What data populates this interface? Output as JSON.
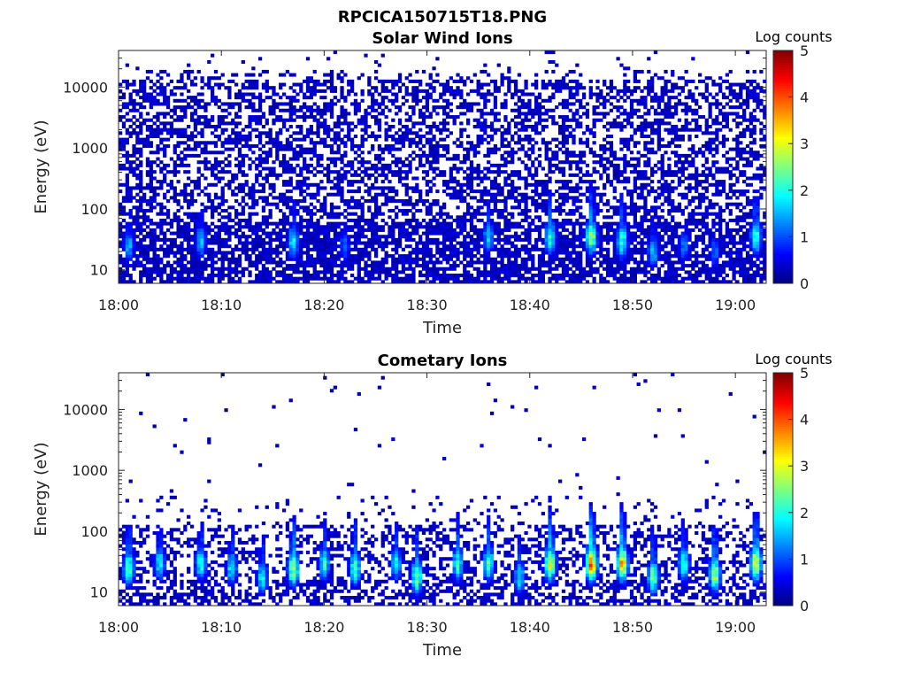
{
  "figure_title": "RPCICA150715T18.PNG",
  "chart_data": [
    {
      "type": "heatmap",
      "title": "Solar Wind Ions",
      "xlabel": "Time",
      "ylabel": "Energy (eV)",
      "xlim": [
        "18:00",
        "19:03"
      ],
      "x_ticks": [
        "18:00",
        "18:10",
        "18:20",
        "18:30",
        "18:40",
        "18:50",
        "19:00"
      ],
      "y_scale": "log",
      "ylim": [
        6,
        40000
      ],
      "y_ticks": [
        10,
        100,
        1000,
        10000
      ],
      "y_tick_labels": [
        "10",
        "100",
        "1000",
        "10000"
      ],
      "colorbar": {
        "label": "Log counts",
        "range": [
          0,
          5
        ],
        "ticks": [
          "0",
          "1",
          "2",
          "3",
          "4",
          "5"
        ],
        "colormap": "jet"
      },
      "peak_regions": [
        {
          "time": "18:01",
          "energy": 25,
          "log_counts": 1.6
        },
        {
          "time": "18:08",
          "energy": 30,
          "log_counts": 1.7
        },
        {
          "time": "18:17",
          "energy": 30,
          "log_counts": 2.0
        },
        {
          "time": "18:22",
          "energy": 25,
          "log_counts": 1.2
        },
        {
          "time": "18:36",
          "energy": 35,
          "log_counts": 1.8
        },
        {
          "time": "18:42",
          "energy": 35,
          "log_counts": 2.3
        },
        {
          "time": "18:46",
          "energy": 35,
          "log_counts": 2.9
        },
        {
          "time": "18:49",
          "energy": 30,
          "log_counts": 2.4
        },
        {
          "time": "18:52",
          "energy": 20,
          "log_counts": 1.7
        },
        {
          "time": "18:55",
          "energy": 25,
          "log_counts": 1.3
        },
        {
          "time": "18:58",
          "energy": 20,
          "log_counts": 1.2
        },
        {
          "time": "19:02",
          "energy": 35,
          "log_counts": 2.4
        }
      ]
    },
    {
      "type": "heatmap",
      "title": "Cometary Ions",
      "xlabel": "Time",
      "ylabel": "Energy (eV)",
      "xlim": [
        "18:00",
        "19:03"
      ],
      "x_ticks": [
        "18:00",
        "18:10",
        "18:20",
        "18:30",
        "18:40",
        "18:50",
        "19:00"
      ],
      "y_scale": "log",
      "ylim": [
        6,
        40000
      ],
      "y_ticks": [
        10,
        100,
        1000,
        10000
      ],
      "y_tick_labels": [
        "10",
        "100",
        "1000",
        "10000"
      ],
      "colorbar": {
        "label": "Log counts",
        "range": [
          0,
          5
        ],
        "ticks": [
          "0",
          "1",
          "2",
          "3",
          "4",
          "5"
        ],
        "colormap": "jet"
      },
      "peak_regions": [
        {
          "time": "18:01",
          "energy": 25,
          "log_counts": 2.6
        },
        {
          "time": "18:04",
          "energy": 30,
          "log_counts": 2.0
        },
        {
          "time": "18:08",
          "energy": 30,
          "log_counts": 2.2
        },
        {
          "time": "18:11",
          "energy": 25,
          "log_counts": 2.0
        },
        {
          "time": "18:14",
          "energy": 18,
          "log_counts": 2.0
        },
        {
          "time": "18:17",
          "energy": 25,
          "log_counts": 3.0
        },
        {
          "time": "18:20",
          "energy": 30,
          "log_counts": 2.2
        },
        {
          "time": "18:23",
          "energy": 25,
          "log_counts": 2.5
        },
        {
          "time": "18:27",
          "energy": 30,
          "log_counts": 2.0
        },
        {
          "time": "18:29",
          "energy": 18,
          "log_counts": 2.6
        },
        {
          "time": "18:33",
          "energy": 30,
          "log_counts": 2.3
        },
        {
          "time": "18:36",
          "energy": 30,
          "log_counts": 2.4
        },
        {
          "time": "18:39",
          "energy": 18,
          "log_counts": 2.0
        },
        {
          "time": "18:42",
          "energy": 30,
          "log_counts": 3.3
        },
        {
          "time": "18:46",
          "energy": 30,
          "log_counts": 4.0
        },
        {
          "time": "18:49",
          "energy": 30,
          "log_counts": 3.8
        },
        {
          "time": "18:52",
          "energy": 18,
          "log_counts": 2.7
        },
        {
          "time": "18:55",
          "energy": 30,
          "log_counts": 2.3
        },
        {
          "time": "18:58",
          "energy": 20,
          "log_counts": 3.0
        },
        {
          "time": "19:02",
          "energy": 30,
          "log_counts": 3.3
        }
      ]
    }
  ]
}
